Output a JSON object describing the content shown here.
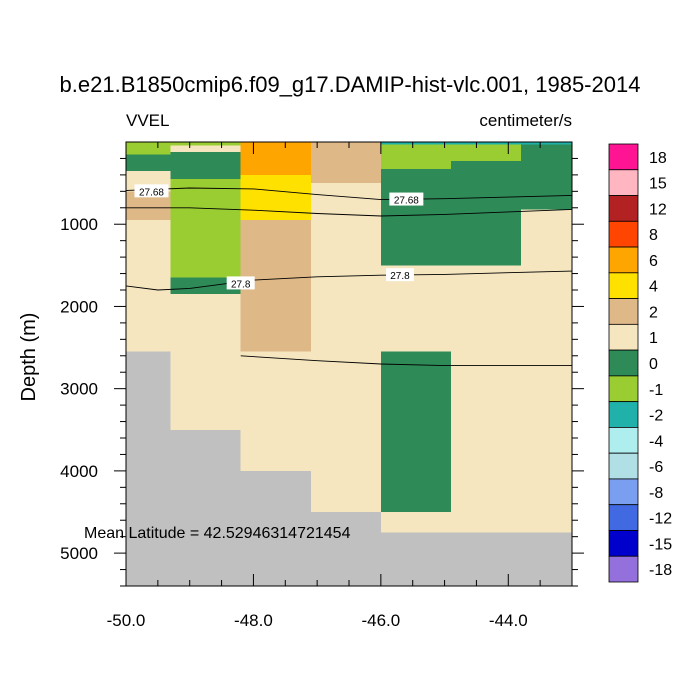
{
  "chart_data": {
    "type": "heatmap",
    "title": "b.e21.B1850cmip6.f09_g17.DAMIP-hist-vlc.001, 1985-2014",
    "left_label": "VVEL",
    "right_label": "centimeter/s",
    "ylabel": "Depth (m)",
    "annotation": "Mean Latitude = 42.52946314721454",
    "xlim": [
      -50.0,
      -43.0
    ],
    "ylim": [
      5400,
      0
    ],
    "x_ticks": [
      -50.0,
      -48.0,
      -46.0,
      -44.0
    ],
    "x_tick_labels": [
      "-50.0",
      "-48.0",
      "-46.0",
      "-44.0"
    ],
    "y_ticks": [
      1000,
      2000,
      3000,
      4000,
      5000
    ],
    "y_tick_labels": [
      "1000",
      "2000",
      "3000",
      "4000",
      "5000"
    ],
    "colorbar": {
      "labels": [
        "18",
        "15",
        "12",
        "8",
        "6",
        "4",
        "2",
        "1",
        "0",
        "-1",
        "-2",
        "-4",
        "-6",
        "-8",
        "-12",
        "-15",
        "-18"
      ],
      "colors": [
        "#ff1493",
        "#ffb6c1",
        "#b22222",
        "#ff4500",
        "#ffa500",
        "#ffe100",
        "#deb887",
        "#f5e6c0",
        "#2e8b57",
        "#9acd32",
        "#20b2aa",
        "#afeeee",
        "#b0e0e6",
        "#7b9ff0",
        "#4169e1",
        "#0000cd",
        "#9370db"
      ]
    },
    "cell_colors": {
      "land": "#c0c0c0",
      "lt_m2": "#20b2aa",
      "m2_m1": "#9acd32",
      "m1_0": "#2e8b57",
      "0_1": "#f5e6c0",
      "1_2": "#deb887",
      "2_4": "#ffe100",
      "4_6": "#ffa500"
    },
    "cells": [
      {
        "x": [
          -50.0,
          -43.0
        ],
        "y": [
          0,
          5400
        ],
        "v": "0_1"
      },
      {
        "x": [
          -50.0,
          -49.3
        ],
        "y": [
          0,
          150
        ],
        "v": "m2_m1"
      },
      {
        "x": [
          -50.0,
          -49.3
        ],
        "y": [
          150,
          350
        ],
        "v": "m1_0"
      },
      {
        "x": [
          -50.0,
          -49.3
        ],
        "y": [
          350,
          600
        ],
        "v": "0_1"
      },
      {
        "x": [
          -50.0,
          -49.3
        ],
        "y": [
          600,
          950
        ],
        "v": "1_2"
      },
      {
        "x": [
          -49.3,
          -48.2
        ],
        "y": [
          0,
          40
        ],
        "v": "m2_m1"
      },
      {
        "x": [
          -49.3,
          -48.2
        ],
        "y": [
          40,
          120
        ],
        "v": "0_1"
      },
      {
        "x": [
          -49.3,
          -48.2
        ],
        "y": [
          120,
          450
        ],
        "v": "m1_0"
      },
      {
        "x": [
          -49.3,
          -48.2
        ],
        "y": [
          450,
          1650
        ],
        "v": "m2_m1"
      },
      {
        "x": [
          -49.3,
          -48.2
        ],
        "y": [
          1650,
          1850
        ],
        "v": "m1_0"
      },
      {
        "x": [
          -48.2,
          -47.1
        ],
        "y": [
          0,
          400
        ],
        "v": "4_6"
      },
      {
        "x": [
          -48.2,
          -47.1
        ],
        "y": [
          400,
          950
        ],
        "v": "2_4"
      },
      {
        "x": [
          -48.2,
          -47.1
        ],
        "y": [
          950,
          2550
        ],
        "v": "1_2"
      },
      {
        "x": [
          -47.1,
          -46.0
        ],
        "y": [
          0,
          500
        ],
        "v": "1_2"
      },
      {
        "x": [
          -46.0,
          -44.9
        ],
        "y": [
          0,
          30
        ],
        "v": "lt_m2"
      },
      {
        "x": [
          -46.0,
          -44.9
        ],
        "y": [
          30,
          330
        ],
        "v": "m2_m1"
      },
      {
        "x": [
          -46.0,
          -44.9
        ],
        "y": [
          330,
          1500
        ],
        "v": "m1_0"
      },
      {
        "x": [
          -46.0,
          -44.9
        ],
        "y": [
          2550,
          4500
        ],
        "v": "m1_0"
      },
      {
        "x": [
          -44.9,
          -43.8
        ],
        "y": [
          0,
          30
        ],
        "v": "lt_m2"
      },
      {
        "x": [
          -44.9,
          -43.8
        ],
        "y": [
          30,
          230
        ],
        "v": "m2_m1"
      },
      {
        "x": [
          -44.9,
          -43.8
        ],
        "y": [
          230,
          1500
        ],
        "v": "m1_0"
      },
      {
        "x": [
          -43.8,
          -43.0
        ],
        "y": [
          0,
          30
        ],
        "v": "lt_m2"
      },
      {
        "x": [
          -43.8,
          -43.0
        ],
        "y": [
          30,
          820
        ],
        "v": "m1_0"
      },
      {
        "x": [
          -50.0,
          -49.3
        ],
        "y": [
          2550,
          5400
        ],
        "v": "land"
      },
      {
        "x": [
          -49.3,
          -48.2
        ],
        "y": [
          3500,
          5400
        ],
        "v": "land"
      },
      {
        "x": [
          -48.2,
          -47.1
        ],
        "y": [
          4000,
          5400
        ],
        "v": "land"
      },
      {
        "x": [
          -47.1,
          -46.0
        ],
        "y": [
          4500,
          5400
        ],
        "v": "land"
      },
      {
        "x": [
          -46.0,
          -43.0
        ],
        "y": [
          4750,
          5400
        ],
        "v": "land"
      }
    ],
    "contours": [
      {
        "label": "27.68",
        "points": [
          [
            -50.0,
            590
          ],
          [
            -49.0,
            560
          ],
          [
            -48.0,
            570
          ],
          [
            -47.0,
            640
          ],
          [
            -46.0,
            700
          ],
          [
            -45.0,
            690
          ],
          [
            -44.0,
            670
          ],
          [
            -43.0,
            650
          ]
        ]
      },
      {
        "label": "",
        "points": [
          [
            -50.0,
            800
          ],
          [
            -49.0,
            800
          ],
          [
            -48.0,
            830
          ],
          [
            -47.0,
            870
          ],
          [
            -46.0,
            900
          ],
          [
            -45.0,
            880
          ],
          [
            -44.0,
            850
          ],
          [
            -43.0,
            820
          ]
        ]
      },
      {
        "label": "27.8",
        "points": [
          [
            -50.0,
            1750
          ],
          [
            -49.5,
            1800
          ],
          [
            -49.0,
            1780
          ],
          [
            -48.0,
            1680
          ],
          [
            -47.0,
            1640
          ],
          [
            -46.0,
            1620
          ],
          [
            -45.0,
            1610
          ],
          [
            -44.0,
            1590
          ],
          [
            -43.0,
            1570
          ]
        ]
      },
      {
        "label": "",
        "points": [
          [
            -48.2,
            2600
          ],
          [
            -47.0,
            2660
          ],
          [
            -46.0,
            2700
          ],
          [
            -45.0,
            2720
          ],
          [
            -44.0,
            2720
          ],
          [
            -43.0,
            2720
          ]
        ]
      }
    ],
    "contour_labels": [
      {
        "text": "27.68",
        "x": -49.6,
        "y": 600
      },
      {
        "text": "27.68",
        "x": -45.6,
        "y": 700
      },
      {
        "text": "27.8",
        "x": -48.2,
        "y": 1720
      },
      {
        "text": "27.8",
        "x": -45.7,
        "y": 1620
      }
    ]
  }
}
